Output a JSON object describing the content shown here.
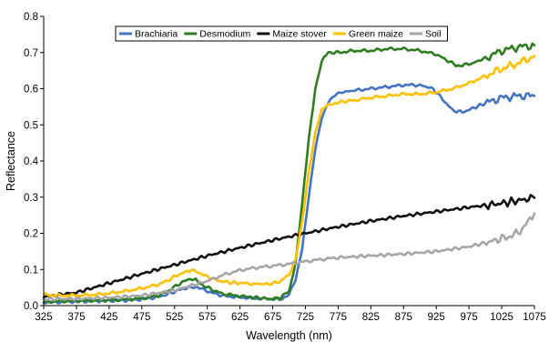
{
  "chart_data": {
    "type": "line",
    "title": "",
    "xlabel": "Wavelength (nm)",
    "ylabel": "Reflectance",
    "xlim": [
      325,
      1075
    ],
    "ylim": [
      0,
      0.8
    ],
    "x_ticks": [
      325,
      375,
      425,
      475,
      525,
      575,
      625,
      675,
      725,
      775,
      825,
      875,
      925,
      975,
      1025,
      1075
    ],
    "y_ticks": [
      0.0,
      0.1,
      0.2,
      0.3,
      0.4,
      0.5,
      0.6,
      0.7,
      0.8
    ],
    "x_tick_labels": [
      "325",
      "375",
      "425",
      "475",
      "525",
      "575",
      "625",
      "675",
      "725",
      "775",
      "825",
      "875",
      "925",
      "975",
      "1025",
      "1075"
    ],
    "y_tick_labels": [
      "0.0",
      "0.1",
      "0.2",
      "0.3",
      "0.4",
      "0.5",
      "0.6",
      "0.7",
      "0.8"
    ],
    "grid": false,
    "legend_position": "top",
    "series": [
      {
        "name": "Brachiaria",
        "color": "#4472C4",
        "x": [
          325,
          350,
          375,
          400,
          425,
          450,
          475,
          500,
          515,
          530,
          545,
          553,
          560,
          570,
          585,
          600,
          625,
          650,
          675,
          690,
          700,
          710,
          720,
          730,
          740,
          750,
          760,
          770,
          780,
          800,
          825,
          850,
          875,
          900,
          920,
          935,
          950,
          965,
          980,
          1000,
          1025,
          1050,
          1075
        ],
        "y": [
          0.01,
          0.01,
          0.012,
          0.013,
          0.014,
          0.015,
          0.018,
          0.024,
          0.032,
          0.042,
          0.05,
          0.052,
          0.05,
          0.043,
          0.034,
          0.027,
          0.023,
          0.02,
          0.018,
          0.02,
          0.03,
          0.07,
          0.16,
          0.3,
          0.43,
          0.52,
          0.565,
          0.58,
          0.59,
          0.595,
          0.6,
          0.605,
          0.61,
          0.61,
          0.6,
          0.57,
          0.54,
          0.535,
          0.545,
          0.56,
          0.575,
          0.58,
          0.58
        ]
      },
      {
        "name": "Desmodium",
        "color": "#2E7D20",
        "x": [
          325,
          350,
          375,
          400,
          425,
          450,
          475,
          500,
          515,
          530,
          545,
          552,
          560,
          570,
          585,
          600,
          625,
          650,
          670,
          685,
          700,
          710,
          720,
          730,
          740,
          750,
          760,
          775,
          800,
          825,
          850,
          875,
          900,
          925,
          940,
          955,
          965,
          980,
          1000,
          1025,
          1050,
          1075
        ],
        "y": [
          0.01,
          0.012,
          0.013,
          0.014,
          0.015,
          0.017,
          0.02,
          0.028,
          0.04,
          0.058,
          0.072,
          0.075,
          0.068,
          0.055,
          0.042,
          0.032,
          0.026,
          0.022,
          0.019,
          0.02,
          0.04,
          0.12,
          0.28,
          0.46,
          0.6,
          0.675,
          0.7,
          0.7,
          0.705,
          0.705,
          0.71,
          0.71,
          0.705,
          0.695,
          0.68,
          0.665,
          0.665,
          0.67,
          0.685,
          0.705,
          0.715,
          0.72
        ]
      },
      {
        "name": "Maize stover",
        "color": "#111111",
        "x": [
          325,
          375,
          425,
          475,
          525,
          575,
          625,
          675,
          725,
          775,
          825,
          875,
          925,
          975,
          1025,
          1075
        ],
        "y": [
          0.025,
          0.036,
          0.062,
          0.088,
          0.113,
          0.138,
          0.16,
          0.181,
          0.2,
          0.218,
          0.234,
          0.248,
          0.26,
          0.272,
          0.283,
          0.298
        ]
      },
      {
        "name": "Green maize",
        "color": "#FFC000",
        "x": [
          325,
          350,
          375,
          400,
          425,
          450,
          475,
          500,
          515,
          530,
          545,
          550,
          560,
          575,
          590,
          605,
          625,
          650,
          670,
          685,
          700,
          710,
          720,
          730,
          740,
          750,
          760,
          770,
          785,
          800,
          825,
          850,
          875,
          900,
          925,
          950,
          975,
          1000,
          1025,
          1050,
          1075
        ],
        "y": [
          0.03,
          0.028,
          0.028,
          0.03,
          0.034,
          0.04,
          0.048,
          0.058,
          0.07,
          0.085,
          0.095,
          0.097,
          0.093,
          0.08,
          0.07,
          0.065,
          0.062,
          0.06,
          0.06,
          0.066,
          0.085,
          0.13,
          0.23,
          0.37,
          0.48,
          0.54,
          0.555,
          0.56,
          0.565,
          0.568,
          0.575,
          0.58,
          0.585,
          0.585,
          0.59,
          0.6,
          0.615,
          0.635,
          0.655,
          0.67,
          0.69
        ]
      },
      {
        "name": "Soil",
        "color": "#A6A6A6",
        "x": [
          325,
          375,
          425,
          475,
          525,
          575,
          600,
          625,
          650,
          675,
          700,
          725,
          750,
          775,
          825,
          875,
          925,
          975,
          1025,
          1050,
          1065,
          1075
        ],
        "y": [
          0.018,
          0.019,
          0.022,
          0.028,
          0.042,
          0.068,
          0.085,
          0.098,
          0.105,
          0.11,
          0.115,
          0.122,
          0.128,
          0.133,
          0.138,
          0.143,
          0.15,
          0.163,
          0.185,
          0.2,
          0.23,
          0.255
        ]
      }
    ]
  }
}
